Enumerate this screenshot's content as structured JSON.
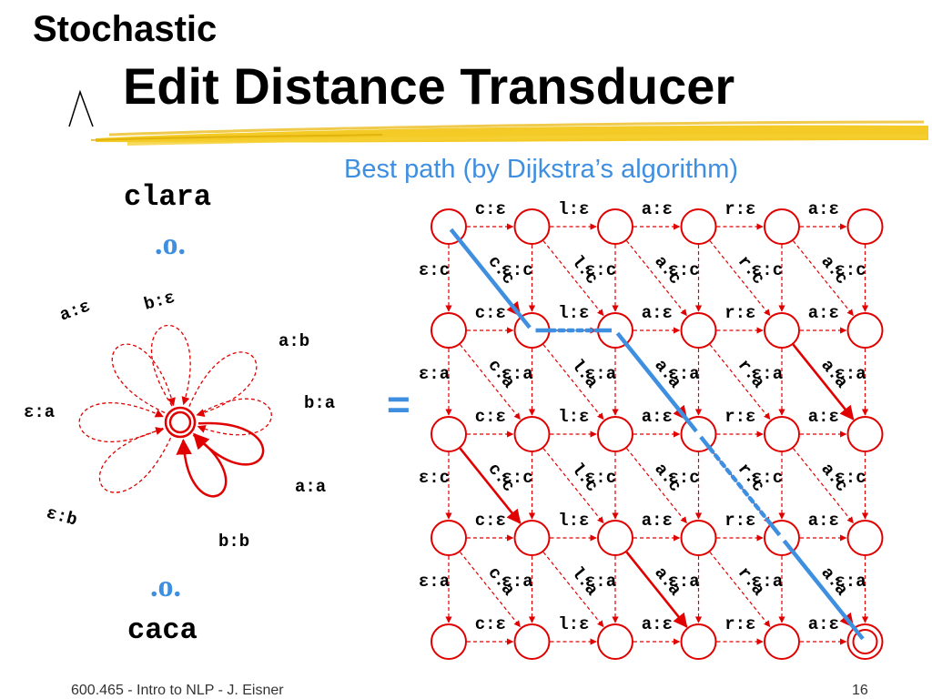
{
  "slide": {
    "title_line1": "Stochastic",
    "title_line2": "Edit Distance Transducer",
    "subtitle": "Best path (by Dijkstra’s algorithm)",
    "input_word": "clara",
    "output_word": "caca",
    "compose_symbol_top": ".o.",
    "compose_symbol_bottom": ".o.",
    "equals": "=",
    "footer_left": "600.465 - Intro to NLP - J. Eisner",
    "footer_right": "16"
  },
  "edit_transducer": {
    "loops_dashed": [
      "a:ε",
      "b:ε",
      "a:b",
      "ε:a",
      "b:a",
      "ε:b"
    ],
    "loops_solid": [
      "a:a",
      "b:b"
    ]
  },
  "lattice": {
    "rows": 5,
    "cols": 6,
    "input_chars": [
      "c",
      "l",
      "a",
      "r",
      "a"
    ],
    "output_chars": [
      "c",
      "a",
      "c",
      "a"
    ],
    "epsilon": "ε",
    "colors": {
      "edge": "#e00000",
      "best_path": "#3f8fe0",
      "node": "#e00000"
    }
  }
}
